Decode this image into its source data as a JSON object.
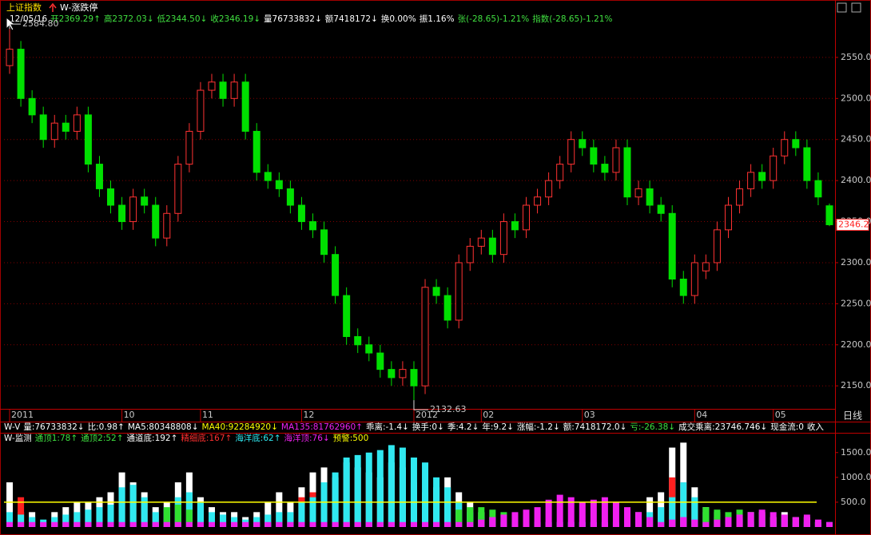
{
  "header": {
    "symbol": "上证指数",
    "indicator": "W-涨跌停",
    "quote": [
      {
        "text": "12/05/16",
        "color": "#ffffff"
      },
      {
        "text": "开2369.29↑",
        "color": "#40e040"
      },
      {
        "text": "高2372.03↓",
        "color": "#40e040"
      },
      {
        "text": "低2344.50↓",
        "color": "#40e040"
      },
      {
        "text": "收2346.19↓",
        "color": "#40e040"
      },
      {
        "text": "量76733832↓",
        "color": "#ffffff"
      },
      {
        "text": "额7418172↓",
        "color": "#ffffff"
      },
      {
        "text": "换0.00%",
        "color": "#ffffff"
      },
      {
        "text": "振1.16%",
        "color": "#ffffff"
      },
      {
        "text": "张(-28.65)-1.21%",
        "color": "#40e040"
      },
      {
        "text": "指数(-28.65)-1.21%",
        "color": "#40e040"
      }
    ]
  },
  "chart_data": [
    {
      "type": "candlestick",
      "categories": [
        "2011",
        null,
        null,
        null,
        null,
        null,
        null,
        null,
        null,
        null,
        "10",
        null,
        null,
        null,
        null,
        null,
        null,
        "11",
        null,
        null,
        null,
        null,
        null,
        null,
        null,
        null,
        "12",
        null,
        null,
        null,
        null,
        null,
        null,
        null,
        null,
        null,
        "2012",
        null,
        null,
        null,
        null,
        null,
        "02",
        null,
        null,
        null,
        null,
        null,
        null,
        null,
        null,
        "03",
        null,
        null,
        null,
        null,
        null,
        null,
        null,
        null,
        null,
        "04",
        null,
        null,
        null,
        null,
        null,
        null,
        "05",
        null,
        null,
        null,
        null,
        null
      ],
      "open": [
        2540,
        2560,
        2500,
        2480,
        2450,
        2470,
        2460,
        2480,
        2420,
        2390,
        2370,
        2350,
        2380,
        2370,
        2330,
        2360,
        2420,
        2460,
        2510,
        2520,
        2500,
        2520,
        2460,
        2410,
        2400,
        2390,
        2370,
        2350,
        2340,
        2310,
        2260,
        2210,
        2200,
        2190,
        2170,
        2160,
        2170,
        2150,
        2270,
        2260,
        2230,
        2300,
        2320,
        2330,
        2310,
        2350,
        2340,
        2370,
        2380,
        2400,
        2420,
        2450,
        2440,
        2420,
        2410,
        2440,
        2380,
        2390,
        2370,
        2360,
        2280,
        2260,
        2290,
        2300,
        2340,
        2370,
        2390,
        2410,
        2400,
        2430,
        2450,
        2440,
        2400,
        2369.29
      ],
      "high": [
        2584.8,
        2570,
        2510,
        2490,
        2480,
        2480,
        2490,
        2490,
        2430,
        2400,
        2380,
        2390,
        2390,
        2380,
        2370,
        2430,
        2470,
        2520,
        2530,
        2530,
        2530,
        2530,
        2470,
        2420,
        2410,
        2400,
        2380,
        2360,
        2350,
        2320,
        2270,
        2220,
        2210,
        2200,
        2180,
        2180,
        2180,
        2280,
        2280,
        2270,
        2310,
        2330,
        2340,
        2340,
        2360,
        2360,
        2380,
        2390,
        2410,
        2430,
        2460,
        2460,
        2450,
        2430,
        2450,
        2450,
        2400,
        2400,
        2380,
        2370,
        2290,
        2310,
        2310,
        2350,
        2380,
        2400,
        2420,
        2420,
        2440,
        2460,
        2460,
        2450,
        2410,
        2372.03
      ],
      "low": [
        2530,
        2490,
        2470,
        2440,
        2440,
        2450,
        2450,
        2410,
        2380,
        2360,
        2340,
        2340,
        2360,
        2320,
        2320,
        2350,
        2410,
        2450,
        2500,
        2490,
        2490,
        2450,
        2400,
        2390,
        2380,
        2360,
        2340,
        2330,
        2300,
        2250,
        2200,
        2190,
        2180,
        2160,
        2150,
        2150,
        2132.63,
        2140,
        2250,
        2220,
        2220,
        2290,
        2310,
        2300,
        2300,
        2330,
        2330,
        2360,
        2370,
        2390,
        2410,
        2430,
        2410,
        2400,
        2400,
        2370,
        2370,
        2360,
        2350,
        2270,
        2250,
        2250,
        2280,
        2290,
        2330,
        2360,
        2380,
        2390,
        2390,
        2420,
        2430,
        2390,
        2370,
        2344.5
      ],
      "close": [
        2560,
        2500,
        2480,
        2450,
        2470,
        2460,
        2480,
        2420,
        2390,
        2370,
        2350,
        2380,
        2370,
        2330,
        2360,
        2420,
        2460,
        2510,
        2520,
        2500,
        2520,
        2460,
        2410,
        2400,
        2390,
        2370,
        2350,
        2340,
        2310,
        2260,
        2210,
        2200,
        2190,
        2170,
        2160,
        2170,
        2150,
        2270,
        2260,
        2230,
        2300,
        2320,
        2330,
        2310,
        2350,
        2340,
        2370,
        2380,
        2400,
        2420,
        2450,
        2440,
        2420,
        2410,
        2440,
        2380,
        2390,
        2370,
        2360,
        2280,
        2260,
        2300,
        2300,
        2340,
        2370,
        2390,
        2410,
        2400,
        2430,
        2450,
        2440,
        2400,
        2380,
        2346.19
      ],
      "up_color": "#ff3232",
      "down_color": "#00e000",
      "ylim": [
        2122,
        2617
      ],
      "yticks": [
        {
          "value": 2150,
          "label": "2150.0"
        },
        {
          "value": 2200,
          "label": "2200.0"
        },
        {
          "value": 2250,
          "label": "2250.0"
        },
        {
          "value": 2300,
          "label": "2300.0"
        },
        {
          "value": 2350,
          "label": "2350.0"
        },
        {
          "value": 2400,
          "label": "2400.0"
        },
        {
          "value": 2450,
          "label": "2450.0"
        },
        {
          "value": 2500,
          "label": "2500.0"
        },
        {
          "value": 2550,
          "label": "2550.0"
        }
      ],
      "grid": true,
      "annotations": [
        "2584.80",
        "2132.63"
      ],
      "last_label": "2346.2",
      "period": "日线"
    },
    {
      "type": "bar",
      "series": [
        {
          "color": "#ffffff",
          "values": [
            900,
            300,
            300,
            0,
            300,
            400,
            500,
            500,
            600,
            700,
            1100,
            900,
            700,
            400,
            500,
            900,
            1100,
            600,
            400,
            300,
            300,
            200,
            300,
            500,
            700,
            500,
            800,
            1100,
            1200,
            1000,
            1300,
            1200,
            1100,
            1000,
            1300,
            1200,
            900,
            700,
            800,
            1000,
            700,
            500,
            300,
            200,
            0,
            0,
            0,
            0,
            0,
            0,
            0,
            0,
            0,
            0,
            0,
            0,
            300,
            600,
            700,
            1600,
            1700,
            800,
            400,
            300,
            200,
            200,
            300,
            300,
            200,
            300,
            200,
            200,
            100,
            0
          ]
        },
        {
          "color": "#ff2020",
          "values": [
            0,
            600,
            0,
            0,
            0,
            0,
            0,
            0,
            0,
            0,
            0,
            0,
            0,
            0,
            0,
            0,
            0,
            0,
            0,
            0,
            0,
            0,
            0,
            0,
            0,
            0,
            600,
            700,
            0,
            0,
            0,
            0,
            0,
            0,
            0,
            0,
            0,
            0,
            0,
            0,
            0,
            0,
            0,
            0,
            0,
            0,
            0,
            0,
            0,
            0,
            0,
            0,
            0,
            0,
            0,
            0,
            0,
            0,
            0,
            1000,
            900,
            0,
            0,
            0,
            0,
            0,
            0,
            0,
            0,
            0,
            0,
            0,
            0,
            0
          ]
        },
        {
          "color": "#30e8f0",
          "values": [
            300,
            250,
            200,
            150,
            200,
            250,
            300,
            350,
            400,
            450,
            800,
            850,
            600,
            300,
            350,
            600,
            700,
            500,
            300,
            250,
            200,
            150,
            200,
            250,
            300,
            300,
            500,
            600,
            900,
            1100,
            1400,
            1450,
            1500,
            1550,
            1650,
            1600,
            1400,
            1300,
            1000,
            800,
            500,
            300,
            200,
            150,
            100,
            100,
            100,
            100,
            100,
            100,
            100,
            100,
            100,
            100,
            100,
            100,
            150,
            300,
            400,
            600,
            900,
            600,
            300,
            200,
            150,
            150,
            100,
            100,
            100,
            150,
            100,
            100,
            100,
            100
          ]
        },
        {
          "color": "#30e030",
          "values": [
            0,
            0,
            0,
            0,
            0,
            0,
            0,
            0,
            0,
            0,
            0,
            0,
            0,
            0,
            400,
            450,
            350,
            0,
            0,
            0,
            0,
            0,
            0,
            0,
            0,
            0,
            0,
            0,
            0,
            0,
            0,
            0,
            0,
            0,
            0,
            0,
            0,
            0,
            0,
            0,
            350,
            400,
            400,
            350,
            300,
            250,
            250,
            0,
            0,
            0,
            0,
            0,
            0,
            0,
            0,
            0,
            0,
            0,
            0,
            0,
            0,
            0,
            400,
            350,
            300,
            350,
            300,
            250,
            200,
            0,
            0,
            0,
            0,
            0
          ]
        },
        {
          "color": "#f020f0",
          "values": [
            100,
            100,
            100,
            100,
            100,
            100,
            100,
            100,
            100,
            100,
            100,
            100,
            100,
            100,
            100,
            100,
            100,
            100,
            100,
            100,
            100,
            100,
            100,
            100,
            100,
            100,
            100,
            100,
            100,
            100,
            100,
            100,
            100,
            100,
            100,
            100,
            100,
            100,
            100,
            100,
            100,
            100,
            150,
            200,
            250,
            300,
            350,
            400,
            550,
            650,
            600,
            500,
            550,
            600,
            500,
            400,
            300,
            200,
            100,
            150,
            200,
            150,
            100,
            150,
            200,
            250,
            300,
            350,
            300,
            250,
            200,
            250,
            150,
            100
          ]
        }
      ],
      "threshold": {
        "value": 500,
        "color": "#ffff00"
      },
      "ylim": [
        0,
        1850
      ],
      "yticks": [
        {
          "value": 500,
          "label": "500.0"
        },
        {
          "value": 1000,
          "label": "1000.0"
        },
        {
          "value": 1500,
          "label": "1500.0"
        }
      ],
      "legend": [
        {
          "text": "W-监测",
          "color": "#ffffff"
        },
        {
          "text": "通顶1:78↑",
          "color": "#40e040"
        },
        {
          "text": "通顶2:52↑",
          "color": "#40e040"
        },
        {
          "text": "通道底:192↑",
          "color": "#ffffff"
        },
        {
          "text": "精细底:167↑",
          "color": "#ff3030"
        },
        {
          "text": "海洋底:62↑",
          "color": "#30e8f0"
        },
        {
          "text": "海洋顶:76↓",
          "color": "#f020f0"
        },
        {
          "text": "预警:500",
          "color": "#ffff00"
        }
      ]
    }
  ],
  "status_line": [
    {
      "text": "W-V",
      "color": "#ffffff"
    },
    {
      "text": "量:76733832↓",
      "color": "#ffffff"
    },
    {
      "text": "比:0.98↑",
      "color": "#ffffff"
    },
    {
      "text": "MA5:80348808↓",
      "color": "#ffffff"
    },
    {
      "text": "MA40:92284920↓",
      "color": "#ffff00"
    },
    {
      "text": "MA135:81762960↑",
      "color": "#f020f0"
    },
    {
      "text": "乖离:-1.4↓",
      "color": "#ffffff"
    },
    {
      "text": "换手:0↓",
      "color": "#ffffff"
    },
    {
      "text": "季:4.2↓",
      "color": "#ffffff"
    },
    {
      "text": "年:9.2↓",
      "color": "#ffffff"
    },
    {
      "text": "涨幅:-1.2↓",
      "color": "#ffffff"
    },
    {
      "text": "额:7418172.0↓",
      "color": "#ffffff"
    },
    {
      "text": "亏:-26.38↓",
      "color": "#40e040"
    },
    {
      "text": "成交乘离:23746.746↓",
      "color": "#ffffff"
    },
    {
      "text": "现金流:0",
      "color": "#ffffff"
    },
    {
      "text": "收入",
      "color": "#ffffff"
    }
  ]
}
